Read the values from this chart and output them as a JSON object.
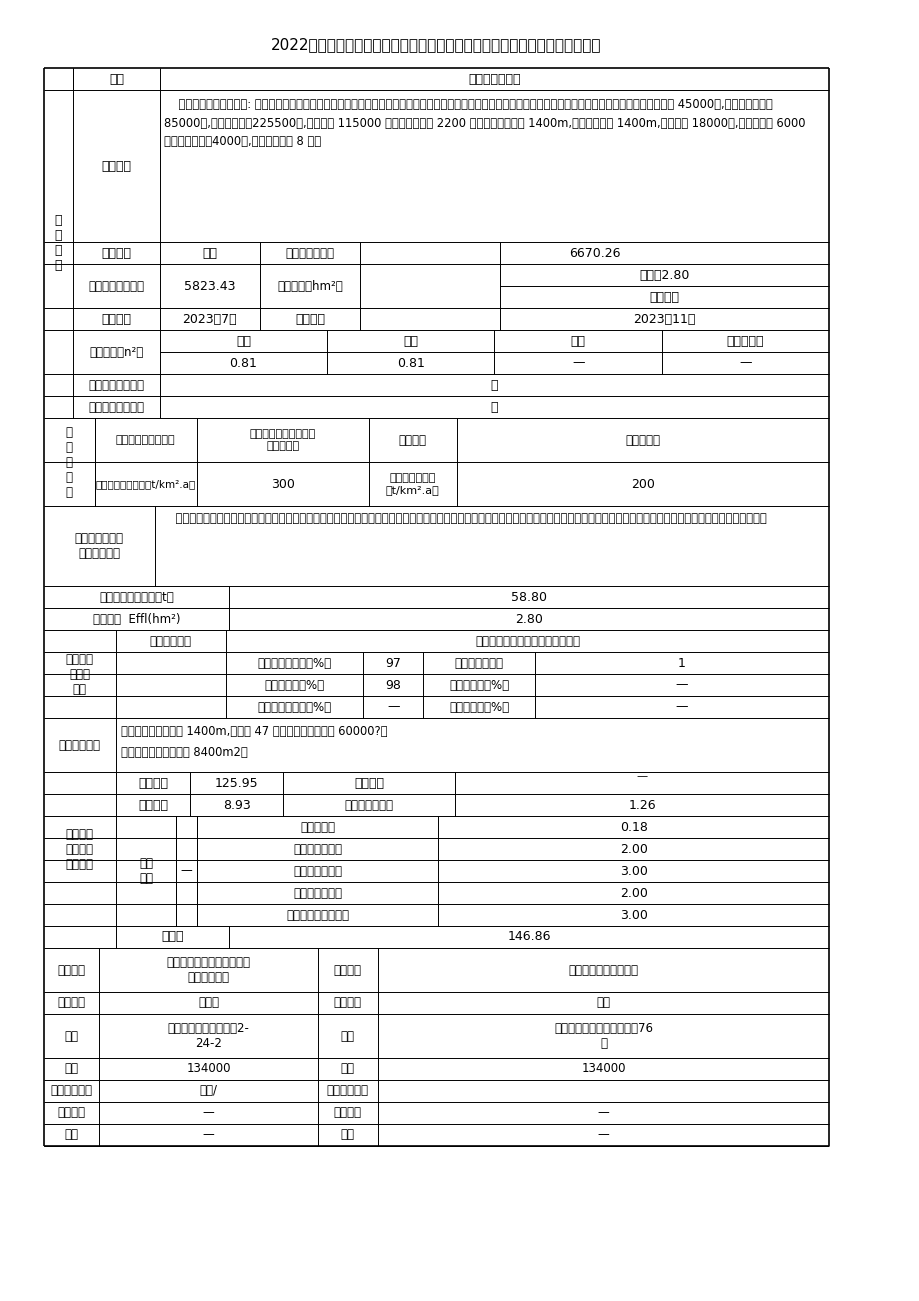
{
  "title": "2022年通化市二道江区城市及小区基础设施改造提升工程水土保持方案报告表",
  "content_text": "    本项目主要建设内容为: 建筑内部楼梯间改造、建筑外立面修缮、更换屋面防水、排水管线改造、道路改造、消防系统改造等工程。具体内容如下：粉刷楼梯间顶棚 45000㎡,粉刷楼梯间内墙 85000㎡,改造屋面防水225500㎡,涂刷外墙 115000 户，更换楼宇门 2200 个，改造污水管网 1400m,改造雨水管网 1400m,道路罩面 18000㎡,翻建停车位 6000 广，翻建人行道4000㎡,改造消防系统 8 套。",
  "eval_text": "    本项工程整体布局合理，项目区属于长白山国家级水土流失重点预防区，方案已按照要求执行一级标准。工程施工优化了施工工艺，减少地表扰动和植被破坏范围，有效控制可能造成的水土流失。",
  "measures_text1": "工程措施：雨水管线 1400m,雨水口 47 个，停车位透水方砖 60000?。",
  "measures_text2": "临时措施：密目网苫盖 8400m2。"
}
